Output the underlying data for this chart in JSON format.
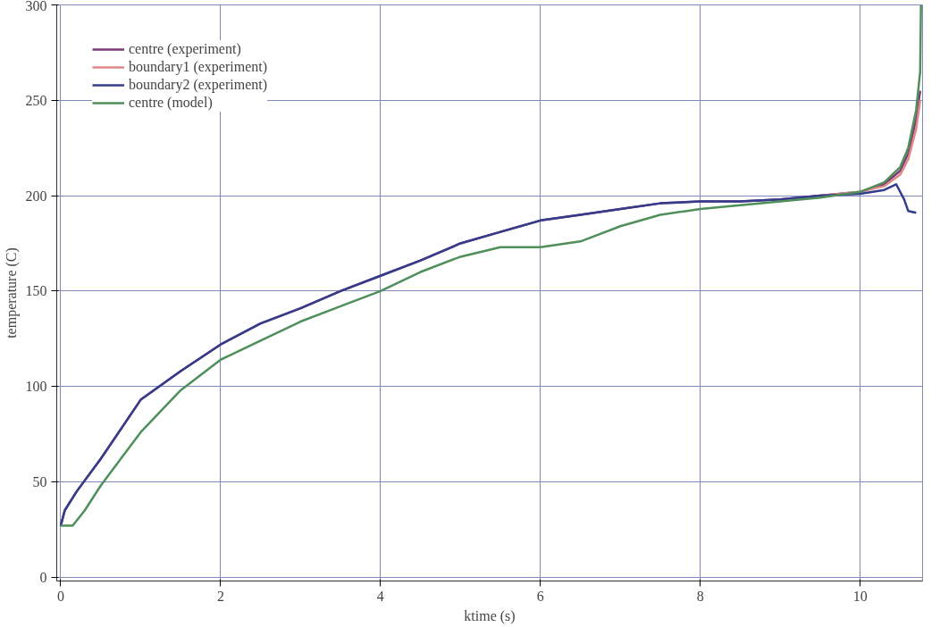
{
  "chart_data": {
    "type": "line",
    "xlabel": "ktime (s)",
    "ylabel": "temperature (C)",
    "xlim": [
      -0.05,
      10.78
    ],
    "ylim": [
      -2,
      300
    ],
    "xticks": [
      0,
      2,
      4,
      6,
      8,
      10
    ],
    "yticks": [
      0,
      50,
      100,
      150,
      200,
      250,
      300
    ],
    "grid": true,
    "legend": "top left",
    "line_style": "solid",
    "marker": "none",
    "series": [
      {
        "name": "centre (experiment)",
        "color": "#7a3b78",
        "x": [
          0,
          0.05,
          0.2,
          0.5,
          1,
          1.5,
          2,
          2.5,
          3,
          3.5,
          4,
          4.5,
          5,
          5.5,
          6,
          6.5,
          7,
          7.5,
          8,
          8.5,
          9,
          9.5,
          10,
          10.3,
          10.5,
          10.6,
          10.7,
          10.75
        ],
        "values": [
          27,
          35,
          45,
          62,
          93,
          108,
          122,
          133,
          141,
          150,
          158,
          166,
          175,
          181,
          187,
          190,
          193,
          196,
          197,
          197,
          198,
          200,
          202,
          206,
          213,
          222,
          240,
          255
        ]
      },
      {
        "name": "boundary1 (experiment)",
        "color": "#e08888",
        "x": [
          9.5,
          10,
          10.3,
          10.5,
          10.6,
          10.7,
          10.75
        ],
        "values": [
          200,
          202,
          205,
          211,
          219,
          235,
          250
        ]
      },
      {
        "name": "boundary2 (experiment)",
        "color": "#363c8c",
        "x": [
          0,
          0.05,
          0.2,
          0.5,
          1,
          1.5,
          2,
          2.5,
          3,
          3.5,
          4,
          4.5,
          5,
          5.5,
          6,
          6.5,
          7,
          7.5,
          8,
          8.5,
          9,
          9.5,
          10,
          10.3,
          10.45,
          10.55,
          10.6,
          10.7
        ],
        "values": [
          27,
          35,
          45,
          62,
          93,
          108,
          122,
          133,
          141,
          150,
          158,
          166,
          175,
          181,
          187,
          190,
          193,
          196,
          197,
          197,
          198,
          200,
          201,
          203,
          206,
          198,
          192,
          191
        ]
      },
      {
        "name": "centre (model)",
        "color": "#4f8f5a",
        "x": [
          0,
          0.15,
          0.3,
          0.5,
          1,
          1.5,
          2,
          2.5,
          3,
          3.5,
          4,
          4.5,
          5,
          5.5,
          6,
          6.5,
          7,
          7.5,
          8,
          8.5,
          9,
          9.5,
          10,
          10.3,
          10.5,
          10.6,
          10.7,
          10.75,
          10.76
        ],
        "values": [
          27,
          27,
          35,
          48,
          76,
          98,
          114,
          124,
          134,
          142,
          150,
          160,
          168,
          173,
          173,
          176,
          184,
          190,
          193,
          195,
          197,
          199,
          202,
          207,
          215,
          225,
          245,
          265,
          300
        ]
      }
    ]
  }
}
